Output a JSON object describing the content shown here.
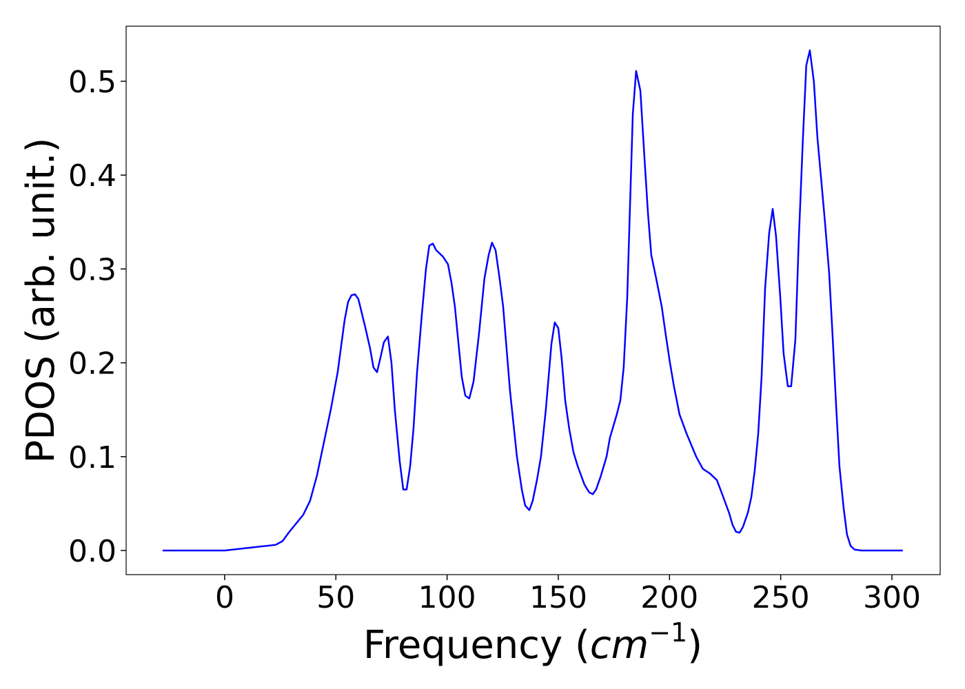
{
  "chart_data": {
    "type": "line",
    "xlabel": [
      "Frequency (",
      "cm",
      "−1",
      ")"
    ],
    "ylabel": "PDOS (arb. unit.)",
    "color": "#0000ff",
    "xlim": [
      -44.3,
      321.7
    ],
    "ylim": [
      -0.0257,
      0.5587
    ],
    "xticks": [
      0,
      50,
      100,
      150,
      200,
      250,
      300
    ],
    "yticks": [
      {
        "value": 0,
        "label": "0.0"
      },
      0.1,
      0.2,
      0.3,
      0.4,
      0.5
    ],
    "x": [
      -27.9,
      0,
      22.9,
      26,
      29.1,
      35.3,
      38.4,
      41.5,
      44.6,
      47.7,
      50.8,
      53.9,
      55.5,
      57,
      58.6,
      60.1,
      63.2,
      65.4,
      66.9,
      68.5,
      70,
      71.6,
      73.4,
      75,
      76.5,
      78.7,
      80.3,
      81.8,
      83.4,
      84.9,
      86.5,
      88.6,
      90.5,
      92,
      93.6,
      95.1,
      98.2,
      100.4,
      102,
      103.5,
      106.6,
      108.2,
      110,
      111.9,
      114.3,
      116.8,
      118.7,
      120.2,
      121.8,
      123.6,
      125.2,
      128.3,
      131.4,
      133.6,
      135.1,
      137,
      138.5,
      140.4,
      142.2,
      144.4,
      146.9,
      148.4,
      150,
      151.5,
      153.1,
      154.9,
      156.8,
      158.7,
      161.8,
      163.9,
      165.5,
      167,
      169.2,
      171.7,
      173.2,
      174.8,
      176.3,
      177.9,
      179.4,
      181,
      183.5,
      185,
      186.9,
      188.7,
      190.3,
      191.8,
      194,
      196.5,
      198.3,
      200.2,
      202,
      204.5,
      207.6,
      212,
      215,
      218.2,
      221.3,
      223.7,
      226.8,
      228.4,
      229.9,
      231.5,
      233,
      235.2,
      236.8,
      238.3,
      239.9,
      241.4,
      243,
      244.8,
      246.4,
      247.9,
      249.8,
      251.3,
      253.2,
      254.7,
      256.6,
      258.1,
      260,
      261.5,
      263.1,
      264.9,
      266.5,
      268.4,
      269.9,
      271.8,
      273.3,
      274.9,
      276.4,
      278.3,
      279.8,
      281.4,
      283.2,
      286.3,
      304.9
    ],
    "values": [
      0,
      0,
      0.006,
      0.01,
      0.02,
      0.038,
      0.053,
      0.08,
      0.115,
      0.15,
      0.19,
      0.245,
      0.265,
      0.272,
      0.273,
      0.268,
      0.238,
      0.215,
      0.195,
      0.19,
      0.205,
      0.222,
      0.228,
      0.2,
      0.15,
      0.095,
      0.065,
      0.065,
      0.09,
      0.13,
      0.19,
      0.25,
      0.3,
      0.325,
      0.327,
      0.32,
      0.313,
      0.305,
      0.285,
      0.26,
      0.185,
      0.165,
      0.162,
      0.18,
      0.23,
      0.29,
      0.315,
      0.328,
      0.32,
      0.29,
      0.26,
      0.17,
      0.1,
      0.065,
      0.048,
      0.043,
      0.053,
      0.075,
      0.1,
      0.15,
      0.22,
      0.243,
      0.237,
      0.205,
      0.16,
      0.13,
      0.105,
      0.09,
      0.07,
      0.062,
      0.06,
      0.065,
      0.08,
      0.1,
      0.12,
      0.133,
      0.145,
      0.16,
      0.195,
      0.27,
      0.465,
      0.511,
      0.49,
      0.42,
      0.36,
      0.315,
      0.29,
      0.26,
      0.23,
      0.2,
      0.175,
      0.145,
      0.125,
      0.1,
      0.087,
      0.082,
      0.075,
      0.06,
      0.04,
      0.027,
      0.02,
      0.019,
      0.025,
      0.04,
      0.057,
      0.085,
      0.125,
      0.185,
      0.28,
      0.338,
      0.364,
      0.335,
      0.27,
      0.21,
      0.175,
      0.175,
      0.225,
      0.33,
      0.44,
      0.517,
      0.533,
      0.5,
      0.44,
      0.39,
      0.35,
      0.295,
      0.23,
      0.155,
      0.09,
      0.045,
      0.017,
      0.005,
      0.001,
      0,
      0
    ]
  }
}
